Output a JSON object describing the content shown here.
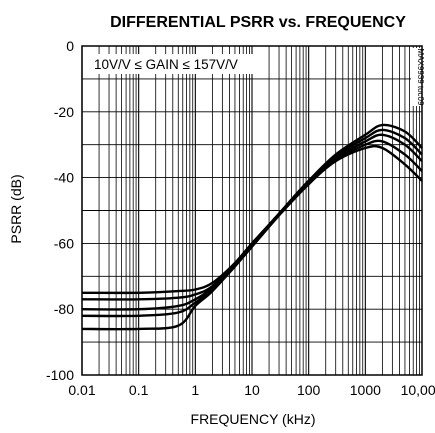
{
  "chart_data": {
    "type": "line",
    "title": "DIFFERENTIAL PSRR vs. FREQUENCY",
    "xlabel": "FREQUENCY (kHz)",
    "ylabel": "PSRR (dB)",
    "x_scale": "log",
    "xlim": [
      0.01,
      10000
    ],
    "ylim": [
      -100,
      0
    ],
    "x_ticks": [
      0.01,
      0.1,
      1,
      10,
      100,
      1000,
      10000
    ],
    "x_tick_labels": [
      "0.01",
      "0.1",
      "1",
      "10",
      "100",
      "1000",
      "10,000"
    ],
    "y_ticks": [
      0,
      -20,
      -40,
      -60,
      -80,
      -100
    ],
    "y_tick_labels": [
      "0",
      "-20",
      "-40",
      "-60",
      "-80",
      "-100"
    ],
    "grid": true,
    "annotation": "10V/V ≤ GAIN ≤ 157V/V",
    "side_label": "MAX9939 toc09",
    "series": [
      {
        "x": [
          0.01,
          0.1,
          0.5,
          1,
          2,
          5,
          10,
          30,
          100,
          300,
          1000,
          2000,
          5000,
          10000
        ],
        "values": [
          -75,
          -75,
          -74.5,
          -74,
          -72,
          -66,
          -60,
          -51,
          -41,
          -33,
          -27,
          -24,
          -26,
          -31
        ]
      },
      {
        "x": [
          0.01,
          0.1,
          0.5,
          1,
          2,
          5,
          10,
          30,
          100,
          300,
          1000,
          2000,
          5000,
          10000
        ],
        "values": [
          -77,
          -77,
          -76.5,
          -75.5,
          -73,
          -66,
          -60,
          -51,
          -41,
          -33.5,
          -28,
          -25.5,
          -28,
          -33
        ]
      },
      {
        "x": [
          0.01,
          0.1,
          0.5,
          1,
          2,
          5,
          10,
          30,
          100,
          300,
          1000,
          2000,
          5000,
          10000
        ],
        "values": [
          -80,
          -80,
          -79,
          -77,
          -73.5,
          -66.5,
          -60.5,
          -51,
          -41,
          -34,
          -29,
          -27,
          -30,
          -35
        ]
      },
      {
        "x": [
          0.01,
          0.1,
          0.5,
          1,
          2,
          5,
          10,
          30,
          100,
          300,
          1000,
          2000,
          5000,
          10000
        ],
        "values": [
          -82,
          -82,
          -81,
          -78,
          -74,
          -67,
          -60.5,
          -51,
          -41.5,
          -34.5,
          -30,
          -29,
          -33,
          -38
        ]
      },
      {
        "x": [
          0.01,
          0.1,
          0.5,
          1,
          2,
          5,
          10,
          30,
          100,
          300,
          1000,
          2000,
          5000,
          10000
        ],
        "values": [
          -86,
          -86,
          -85,
          -79,
          -74.5,
          -67,
          -61,
          -51.5,
          -42,
          -35,
          -31,
          -31,
          -36,
          -41
        ]
      }
    ]
  }
}
